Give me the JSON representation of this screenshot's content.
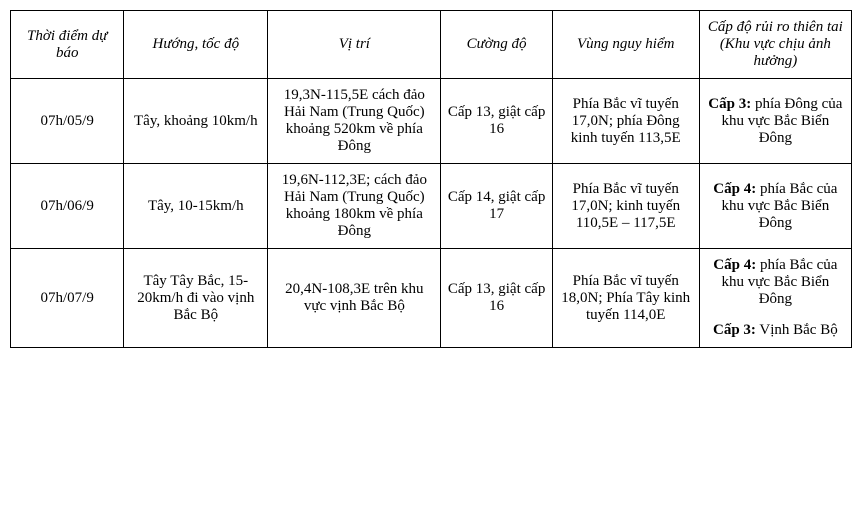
{
  "columns": [
    "Thời điểm dự báo",
    "Hướng, tốc độ",
    "Vị trí",
    "Cường độ",
    "Vùng nguy hiểm",
    "Cấp độ rủi ro thiên tai (Khu vực chịu ảnh hưởng)"
  ],
  "rows": [
    {
      "time": "07h/05/9",
      "dir": "Tây, khoảng 10km/h",
      "pos": "19,3N-115,5E cách đảo Hải Nam (Trung Quốc) khoảng 520km về phía Đông",
      "intensity": "Cấp 13, giật cấp 16",
      "danger": "Phía Bắc vĩ tuyến 17,0N; phía Đông kinh tuyến 113,5E",
      "risk": [
        {
          "level": "Cấp 3:",
          "text": " phía Đông của khu vực Bắc Biển Đông"
        }
      ]
    },
    {
      "time": "07h/06/9",
      "dir": "Tây, 10-15km/h",
      "pos": "19,6N-112,3E; cách đảo Hải Nam (Trung Quốc) khoảng 180km về  phía Đông",
      "intensity": "Cấp 14, giật cấp 17",
      "danger": "Phía Bắc vĩ tuyến 17,0N; kinh tuyến 110,5E – 117,5E",
      "risk": [
        {
          "level": "Cấp 4:",
          "text": " phía Bắc của khu vực Bắc Biển Đông"
        }
      ]
    },
    {
      "time": "07h/07/9",
      "dir": "Tây Tây Bắc, 15-20km/h đi vào vịnh Bắc Bộ",
      "pos": "20,4N-108,3E trên khu vực vịnh Bắc Bộ",
      "intensity": "Cấp 13, giật cấp 16",
      "danger": "Phía Bắc vĩ tuyến 18,0N; Phía Tây kinh tuyến  114,0E",
      "risk": [
        {
          "level": "Cấp 4:",
          "text": " phía Bắc của khu vực Bắc Biển Đông"
        },
        {
          "level": "Cấp 3:",
          "text": " Vịnh Bắc Bộ"
        }
      ]
    }
  ]
}
